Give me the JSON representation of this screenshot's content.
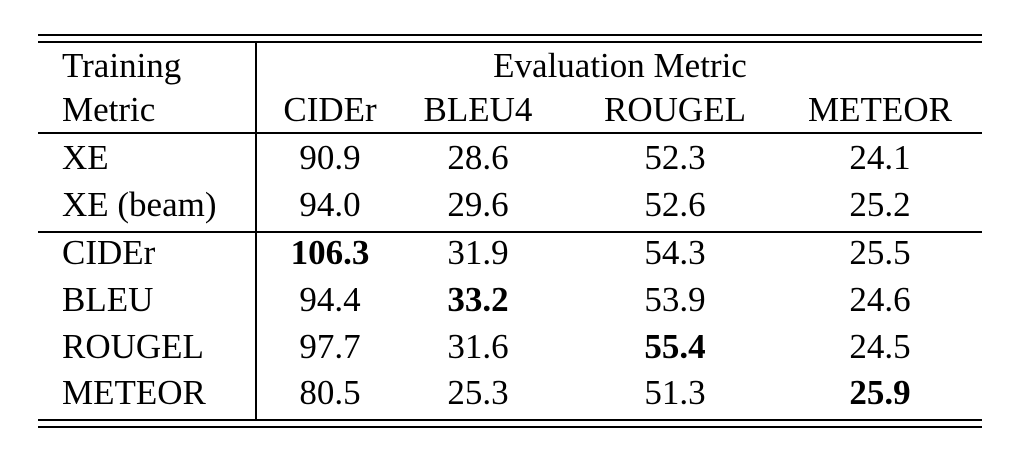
{
  "table": {
    "row_header_line1": "Training",
    "row_header_line2": "Metric",
    "group_header": "Evaluation Metric",
    "columns": [
      "CIDEr",
      "BLEU4",
      "ROUGEL",
      "METEOR"
    ],
    "rows": [
      {
        "label": "XE",
        "values": [
          "90.9",
          "28.6",
          "52.3",
          "24.1"
        ],
        "bold_index": -1
      },
      {
        "label": "XE (beam)",
        "values": [
          "94.0",
          "29.6",
          "52.6",
          "25.2"
        ],
        "bold_index": -1
      },
      {
        "label": "CIDEr",
        "values": [
          "106.3",
          "31.9",
          "54.3",
          "25.5"
        ],
        "bold_index": 0
      },
      {
        "label": "BLEU",
        "values": [
          "94.4",
          "33.2",
          "53.9",
          "24.6"
        ],
        "bold_index": 1
      },
      {
        "label": "ROUGEL",
        "values": [
          "97.7",
          "31.6",
          "55.4",
          "24.5"
        ],
        "bold_index": 2
      },
      {
        "label": "METEOR",
        "values": [
          "80.5",
          "25.3",
          "51.3",
          "25.9"
        ],
        "bold_index": 3
      }
    ]
  }
}
